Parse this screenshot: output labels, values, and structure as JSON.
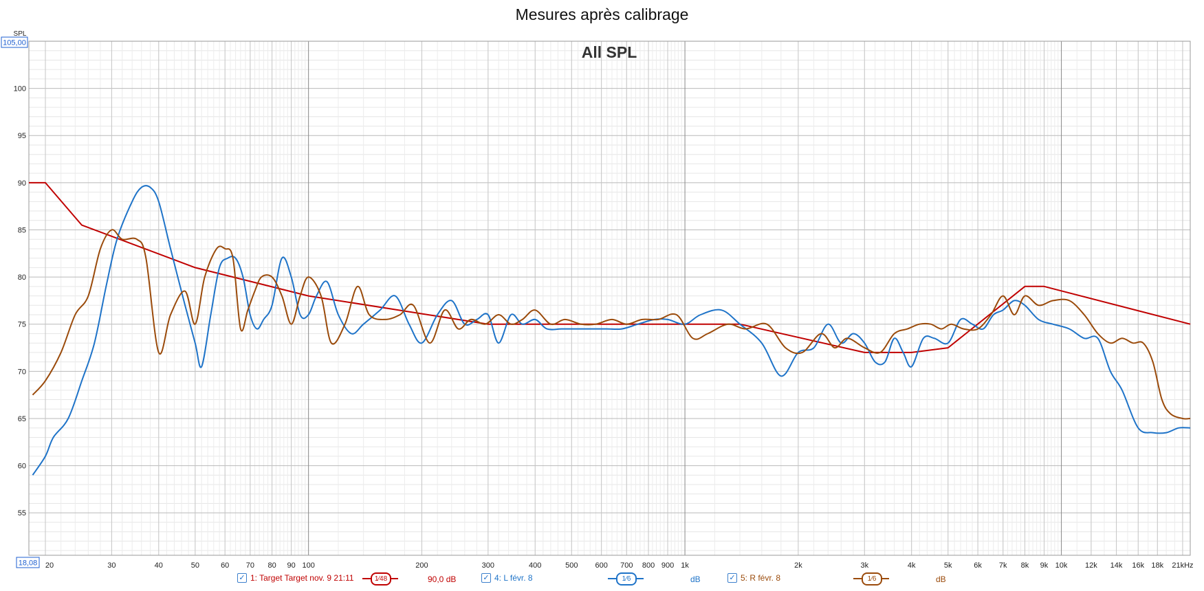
{
  "title": "Mesures après calibrage",
  "chart_data": {
    "type": "line",
    "title": "All SPL",
    "ylabel": "SPL",
    "xlabel": "",
    "x_scale": "log",
    "xlim": [
      18.08,
      22000
    ],
    "ylim": [
      50.5,
      105.0
    ],
    "y_min_readout": "18,08",
    "y_max_readout": "105,00",
    "y_ticks": [
      55,
      60,
      65,
      70,
      75,
      80,
      85,
      90,
      95,
      100
    ],
    "x_ticks": [
      {
        "v": 20,
        "label": "20"
      },
      {
        "v": 30,
        "label": "30"
      },
      {
        "v": 40,
        "label": "40"
      },
      {
        "v": 50,
        "label": "50"
      },
      {
        "v": 60,
        "label": "60"
      },
      {
        "v": 70,
        "label": "70"
      },
      {
        "v": 80,
        "label": "80"
      },
      {
        "v": 90,
        "label": "90"
      },
      {
        "v": 100,
        "label": "100"
      },
      {
        "v": 200,
        "label": "200"
      },
      {
        "v": 300,
        "label": "300"
      },
      {
        "v": 400,
        "label": "400"
      },
      {
        "v": 500,
        "label": "500"
      },
      {
        "v": 600,
        "label": "600"
      },
      {
        "v": 700,
        "label": "700"
      },
      {
        "v": 800,
        "label": "800"
      },
      {
        "v": 900,
        "label": "900"
      },
      {
        "v": 1000,
        "label": "1k"
      },
      {
        "v": 2000,
        "label": "2k"
      },
      {
        "v": 3000,
        "label": "3k"
      },
      {
        "v": 4000,
        "label": "4k"
      },
      {
        "v": 5000,
        "label": "5k"
      },
      {
        "v": 6000,
        "label": "6k"
      },
      {
        "v": 7000,
        "label": "7k"
      },
      {
        "v": 8000,
        "label": "8k"
      },
      {
        "v": 9000,
        "label": "9k"
      },
      {
        "v": 10000,
        "label": "10k"
      },
      {
        "v": 12000,
        "label": "12k"
      },
      {
        "v": 14000,
        "label": "14k"
      },
      {
        "v": 16000,
        "label": "16k"
      },
      {
        "v": 18000,
        "label": "18k"
      },
      {
        "v": 21000,
        "label": "21kHz"
      }
    ],
    "grid": true,
    "series": [
      {
        "name": "1: Target Target nov. 9 21:11",
        "color": "#c00000",
        "smooth": false,
        "x": [
          18.08,
          20,
          25,
          50,
          100,
          300,
          1400,
          3000,
          4000,
          5000,
          8000,
          9000,
          22000
        ],
        "y": [
          90,
          90,
          85.5,
          81,
          78,
          75,
          75,
          72,
          72,
          72.5,
          79,
          79,
          75
        ]
      },
      {
        "name": "4: L févr. 8",
        "color": "#1e73c8",
        "smooth": true,
        "x": [
          18.5,
          20,
          21,
          23,
          25,
          27,
          29,
          31,
          34,
          36,
          38,
          40,
          43,
          47,
          50,
          52,
          55,
          58,
          61,
          64,
          67,
          70,
          73,
          76,
          80,
          85,
          90,
          95,
          100,
          105,
          112,
          120,
          130,
          140,
          155,
          170,
          185,
          200,
          220,
          240,
          260,
          280,
          300,
          320,
          345,
          370,
          400,
          430,
          470,
          510,
          560,
          620,
          680,
          750,
          830,
          900,
          1000,
          1100,
          1250,
          1400,
          1600,
          1800,
          2000,
          2200,
          2400,
          2600,
          2800,
          3000,
          3200,
          3400,
          3600,
          3800,
          4000,
          4300,
          4600,
          5000,
          5400,
          5800,
          6200,
          6600,
          7000,
          7500,
          8000,
          8700,
          9500,
          10500,
          11500,
          12500,
          13500,
          14500,
          16000,
          17500,
          19000,
          20500,
          22000
        ],
        "y": [
          59,
          61,
          63,
          65,
          69,
          73,
          79,
          84,
          88,
          89.5,
          89.5,
          88,
          83,
          77,
          73,
          70.5,
          76,
          81,
          82,
          82,
          80,
          76,
          74.5,
          75.5,
          77,
          82,
          80,
          76,
          76,
          78,
          79.5,
          76,
          74,
          75,
          76.5,
          78,
          75,
          73,
          76,
          77.5,
          75,
          75.5,
          76,
          73,
          76,
          75,
          75.5,
          74.5,
          74.5,
          74.5,
          74.5,
          74.5,
          74.5,
          75,
          75.5,
          75.5,
          75,
          76,
          76.5,
          75,
          73,
          69.5,
          72,
          72.5,
          75,
          73,
          74,
          73,
          71,
          71,
          73.5,
          72,
          70.5,
          73.5,
          73.5,
          73,
          75.5,
          75,
          74.5,
          76,
          76.5,
          77.5,
          77,
          75.5,
          75,
          74.5,
          73.5,
          73.5,
          70,
          68,
          64,
          63.5,
          63.5,
          64,
          64
        ]
      },
      {
        "name": "5: R févr. 8",
        "color": "#9a4a0a",
        "smooth": true,
        "x": [
          18.5,
          20,
          22,
          24,
          26,
          28,
          30,
          32,
          35,
          37,
          40,
          43,
          47,
          50,
          53,
          57,
          60,
          63,
          66,
          69,
          72,
          75,
          80,
          85,
          90,
          95,
          100,
          108,
          115,
          125,
          135,
          145,
          160,
          175,
          190,
          210,
          230,
          250,
          270,
          295,
          320,
          345,
          370,
          400,
          440,
          480,
          530,
          580,
          640,
          700,
          770,
          850,
          950,
          1050,
          1150,
          1300,
          1450,
          1650,
          1850,
          2050,
          2300,
          2500,
          2700,
          3000,
          3300,
          3600,
          3900,
          4200,
          4500,
          4800,
          5100,
          5500,
          6000,
          6500,
          7000,
          7500,
          8000,
          8700,
          9500,
          10500,
          11500,
          12500,
          13500,
          14500,
          15500,
          16500,
          17500,
          18500,
          19500,
          21000,
          22000
        ],
        "y": [
          67.5,
          69,
          72,
          76,
          78,
          83,
          85,
          84,
          84,
          82,
          72,
          76,
          78.5,
          75,
          80,
          83,
          83,
          82,
          74.5,
          76.5,
          78.5,
          80,
          80,
          78,
          75,
          78,
          80,
          78,
          73,
          75,
          79,
          76,
          75.5,
          76,
          77,
          73,
          76.5,
          74.5,
          75.5,
          75,
          76,
          75,
          75.5,
          76.5,
          75,
          75.5,
          75,
          75,
          75.5,
          75,
          75.5,
          75.5,
          76,
          73.5,
          74,
          75,
          74.5,
          75,
          72.5,
          72,
          74,
          72.5,
          73.5,
          72.5,
          72,
          74,
          74.5,
          75,
          75,
          74.5,
          75,
          74.5,
          74.5,
          76,
          78,
          76,
          78,
          77,
          77.5,
          77.5,
          76,
          74,
          73,
          73.5,
          73,
          73,
          71,
          67,
          65.5,
          65,
          65
        ]
      }
    ]
  },
  "legend": {
    "items": [
      {
        "label": "1: Target Target nov. 9 21:11",
        "smoothing": "1⁄48",
        "db": "90,0 dB",
        "color": "#c00000"
      },
      {
        "label": "4: L févr. 8",
        "smoothing": "1⁄6",
        "db": "dB",
        "color": "#1e73c8"
      },
      {
        "label": "5: R févr. 8",
        "smoothing": "1⁄6",
        "db": "dB",
        "color": "#9a4a0a"
      }
    ]
  }
}
